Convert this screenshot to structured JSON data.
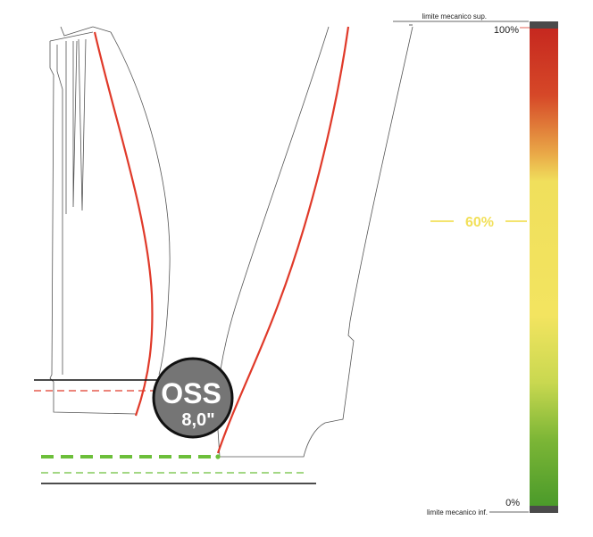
{
  "oss_badge": {
    "title": "OSS",
    "value": "8,0\""
  },
  "scale": {
    "upper_limit_label": "limite mecanico sup.",
    "lower_limit_label": "limite mecanico inf.",
    "top_percent_label": "100%",
    "bottom_percent_label": "0%",
    "marker_label": "60%",
    "marker_value_percent": 60
  },
  "colors": {
    "suspension_red": "#e03a2a",
    "dashed_green": "#6cbf3a",
    "marker_yellow": "#f2e05a",
    "badge_fill": "#757575",
    "bar_cap": "#4a4a4a",
    "gradient": [
      "#c6281f",
      "#e26a2d",
      "#f0df5c",
      "#f3e460",
      "#a9cc44",
      "#4a9a2a"
    ]
  }
}
